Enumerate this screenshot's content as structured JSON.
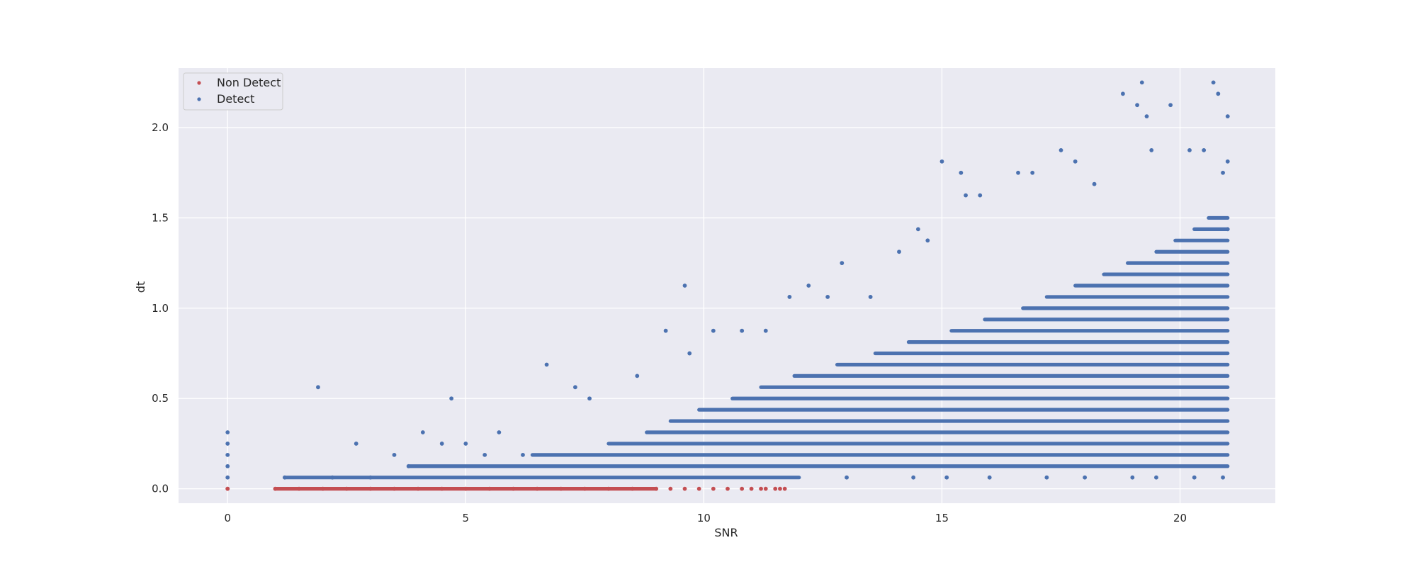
{
  "chart_data": {
    "type": "scatter",
    "title": "",
    "xlabel": "SNR",
    "ylabel": "dt",
    "xlim": [
      -1.03,
      22.0
    ],
    "ylim": [
      -0.08,
      2.33
    ],
    "xticks": [
      0,
      5,
      10,
      15,
      20
    ],
    "xtick_labels": [
      "0",
      "5",
      "10",
      "15",
      "20"
    ],
    "yticks": [
      0.0,
      0.5,
      1.0,
      1.5,
      2.0
    ],
    "ytick_labels": [
      "0.0",
      "0.5",
      "1.0",
      "1.5",
      "2.0"
    ],
    "grid": true,
    "background": "#eaeaf2",
    "legend_position": "top-left",
    "series": [
      {
        "name": "Non Detect",
        "color": "#c44e52",
        "points": [
          [
            0,
            0.0
          ],
          [
            0,
            0.0
          ],
          [
            1.0,
            0.0
          ],
          [
            1.5,
            0.0
          ],
          [
            2.0,
            0.0
          ],
          [
            2.5,
            0.0
          ],
          [
            3.0,
            0.0
          ],
          [
            3.5,
            0.0
          ],
          [
            4.0,
            0.0
          ],
          [
            4.5,
            0.0
          ],
          [
            5.0,
            0.0
          ],
          [
            5.5,
            0.0
          ],
          [
            6.0,
            0.0
          ],
          [
            6.5,
            0.0
          ],
          [
            7.0,
            0.0
          ],
          [
            7.5,
            0.0
          ],
          [
            8.0,
            0.0
          ],
          [
            8.5,
            0.0
          ],
          [
            9.0,
            0.0
          ],
          [
            9.3,
            0.0
          ],
          [
            9.6,
            0.0
          ],
          [
            9.9,
            0.0
          ],
          [
            10.2,
            0.0
          ],
          [
            10.5,
            0.0
          ],
          [
            10.8,
            0.0
          ],
          [
            11.0,
            0.0
          ],
          [
            11.2,
            0.0
          ],
          [
            11.3,
            0.0
          ],
          [
            11.5,
            0.0
          ],
          [
            11.6,
            0.0
          ],
          [
            11.7,
            0.0
          ]
        ]
      },
      {
        "name": "Detect",
        "color": "#4c72b0",
        "points": [
          [
            0,
            0.0625
          ],
          [
            0,
            0.125
          ],
          [
            0,
            0.1875
          ],
          [
            0,
            0.25
          ],
          [
            0,
            0.3125
          ],
          [
            1.2,
            0.0625
          ],
          [
            1.9,
            0.5625
          ],
          [
            2.2,
            0.0625
          ],
          [
            2.7,
            0.25
          ],
          [
            3.0,
            0.0625
          ],
          [
            3.5,
            0.1875
          ],
          [
            3.8,
            0.125
          ],
          [
            4.1,
            0.3125
          ],
          [
            4.5,
            0.25
          ],
          [
            4.7,
            0.5
          ],
          [
            5.0,
            0.25
          ],
          [
            5.4,
            0.1875
          ],
          [
            5.7,
            0.3125
          ],
          [
            6.2,
            0.1875
          ],
          [
            6.7,
            0.6875
          ],
          [
            7.3,
            0.5625
          ],
          [
            7.6,
            0.5
          ],
          [
            8.6,
            0.625
          ],
          [
            9.2,
            0.875
          ],
          [
            9.6,
            1.125
          ],
          [
            9.7,
            0.75
          ],
          [
            10.2,
            0.875
          ],
          [
            10.8,
            0.875
          ],
          [
            11.3,
            0.875
          ],
          [
            11.8,
            1.0625
          ],
          [
            12.2,
            1.125
          ],
          [
            12.6,
            1.0625
          ],
          [
            12.9,
            1.25
          ],
          [
            13.5,
            1.0625
          ],
          [
            14.1,
            1.3125
          ],
          [
            14.5,
            1.4375
          ],
          [
            14.7,
            1.375
          ],
          [
            15.0,
            1.8125
          ],
          [
            15.4,
            1.75
          ],
          [
            15.5,
            1.625
          ],
          [
            15.8,
            1.625
          ],
          [
            16.6,
            1.75
          ],
          [
            16.9,
            1.75
          ],
          [
            17.5,
            1.875
          ],
          [
            17.8,
            1.8125
          ],
          [
            18.2,
            1.6875
          ],
          [
            18.8,
            2.1875
          ],
          [
            19.1,
            2.125
          ],
          [
            19.2,
            2.25
          ],
          [
            19.3,
            2.0625
          ],
          [
            19.4,
            1.875
          ],
          [
            19.8,
            2.125
          ],
          [
            20.2,
            1.875
          ],
          [
            20.5,
            1.875
          ],
          [
            20.7,
            2.25
          ],
          [
            20.8,
            2.1875
          ],
          [
            21.0,
            2.0625
          ],
          [
            21.0,
            1.8125
          ],
          [
            20.9,
            1.75
          ],
          [
            21.0,
            1.4375
          ],
          [
            18.0,
            0.0625
          ],
          [
            19.0,
            0.0625
          ],
          [
            19.5,
            0.0625
          ],
          [
            20.3,
            0.0625
          ],
          [
            20.9,
            0.0625
          ],
          [
            16.0,
            0.0625
          ],
          [
            15.1,
            0.0625
          ],
          [
            14.4,
            0.0625
          ],
          [
            17.2,
            0.0625
          ],
          [
            13.0,
            0.0625
          ]
        ],
        "band_rows": [
          {
            "y": 0.0625,
            "from": 1.2,
            "to": 12.0
          },
          {
            "y": 0.125,
            "from": 3.8,
            "to": 21.0
          },
          {
            "y": 0.1875,
            "from": 6.4,
            "to": 21.0
          },
          {
            "y": 0.25,
            "from": 8.0,
            "to": 21.0
          },
          {
            "y": 0.3125,
            "from": 8.8,
            "to": 21.0
          },
          {
            "y": 0.375,
            "from": 9.3,
            "to": 21.0
          },
          {
            "y": 0.4375,
            "from": 9.9,
            "to": 21.0
          },
          {
            "y": 0.5,
            "from": 10.6,
            "to": 21.0
          },
          {
            "y": 0.5625,
            "from": 11.2,
            "to": 21.0
          },
          {
            "y": 0.625,
            "from": 11.9,
            "to": 21.0
          },
          {
            "y": 0.6875,
            "from": 12.8,
            "to": 21.0
          },
          {
            "y": 0.75,
            "from": 13.6,
            "to": 21.0
          },
          {
            "y": 0.8125,
            "from": 14.3,
            "to": 21.0
          },
          {
            "y": 0.875,
            "from": 15.2,
            "to": 21.0
          },
          {
            "y": 0.9375,
            "from": 15.9,
            "to": 21.0
          },
          {
            "y": 1.0,
            "from": 16.7,
            "to": 21.0
          },
          {
            "y": 1.0625,
            "from": 17.2,
            "to": 21.0
          },
          {
            "y": 1.125,
            "from": 17.8,
            "to": 21.0
          },
          {
            "y": 1.1875,
            "from": 18.4,
            "to": 21.0
          },
          {
            "y": 1.25,
            "from": 18.9,
            "to": 21.0
          },
          {
            "y": 1.3125,
            "from": 19.5,
            "to": 21.0
          },
          {
            "y": 1.375,
            "from": 19.9,
            "to": 21.0
          },
          {
            "y": 1.4375,
            "from": 20.3,
            "to": 21.0
          },
          {
            "y": 1.5,
            "from": 20.6,
            "to": 21.0
          }
        ]
      }
    ]
  }
}
